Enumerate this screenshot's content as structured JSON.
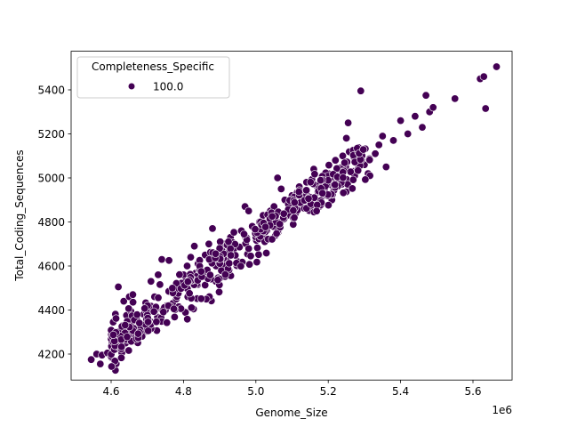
{
  "chart_data": {
    "type": "scatter",
    "title": "",
    "xlabel": "Genome_Size",
    "ylabel": "Total_Coding_Sequences",
    "x_offset_label": "1e6",
    "xlim": [
      4.49,
      5.72
    ],
    "ylim": [
      4088,
      5537
    ],
    "x_ticks": [
      4.6,
      4.8,
      5.0,
      5.2,
      5.4,
      5.6
    ],
    "x_tick_labels": [
      "4.6",
      "4.8",
      "5.0",
      "5.2",
      "5.4",
      "5.6"
    ],
    "y_ticks": [
      4200,
      4400,
      4600,
      4800,
      5000,
      5200,
      5400
    ],
    "y_tick_labels": [
      "4200",
      "4400",
      "4600",
      "4800",
      "5000",
      "5200",
      "5400"
    ],
    "grid": false,
    "legend": {
      "title": "Completeness_Specific",
      "position": "upper left",
      "entries": [
        {
          "label": "100.0",
          "color": "#440154"
        }
      ]
    },
    "marker_color": "#440154",
    "marker_edge": "#ffffff",
    "trend": {
      "slope_cds_per_mb": 1230,
      "intercept_at_4_6": 4230
    },
    "series": [
      {
        "name": "100.0",
        "points": [
          [
            4.545,
            4175
          ],
          [
            4.56,
            4200
          ],
          [
            4.57,
            4155
          ],
          [
            4.575,
            4195
          ],
          [
            4.59,
            4205
          ],
          [
            4.6,
            4185
          ],
          [
            4.61,
            4240
          ],
          [
            4.62,
            4225
          ],
          [
            4.63,
            4230
          ],
          [
            4.64,
            4250
          ],
          [
            4.645,
            4265
          ],
          [
            4.655,
            4280
          ],
          [
            4.62,
            4505
          ],
          [
            4.635,
            4440
          ],
          [
            4.65,
            4460
          ],
          [
            4.66,
            4470
          ],
          [
            4.67,
            4360
          ],
          [
            4.68,
            4340
          ],
          [
            4.69,
            4380
          ],
          [
            4.7,
            4420
          ],
          [
            4.71,
            4530
          ],
          [
            4.72,
            4460
          ],
          [
            4.73,
            4560
          ],
          [
            4.74,
            4630
          ],
          [
            4.76,
            4625
          ],
          [
            4.75,
            4400
          ],
          [
            4.77,
            4430
          ],
          [
            4.78,
            4450
          ],
          [
            4.79,
            4500
          ],
          [
            4.8,
            4560
          ],
          [
            4.81,
            4600
          ],
          [
            4.82,
            4640
          ],
          [
            4.83,
            4690
          ],
          [
            4.84,
            4610
          ],
          [
            4.85,
            4560
          ],
          [
            4.86,
            4650
          ],
          [
            4.87,
            4700
          ],
          [
            4.88,
            4770
          ],
          [
            4.89,
            4600
          ],
          [
            4.9,
            4660
          ],
          [
            4.91,
            4700
          ],
          [
            4.92,
            4640
          ],
          [
            4.93,
            4730
          ],
          [
            4.94,
            4680
          ],
          [
            4.95,
            4620
          ],
          [
            4.96,
            4760
          ],
          [
            4.97,
            4870
          ],
          [
            4.98,
            4850
          ],
          [
            4.99,
            4780
          ],
          [
            5.0,
            4720
          ],
          [
            5.01,
            4800
          ],
          [
            5.02,
            4830
          ],
          [
            5.03,
            4760
          ],
          [
            5.04,
            4850
          ],
          [
            5.05,
            4870
          ],
          [
            5.06,
            5000
          ],
          [
            5.07,
            4950
          ],
          [
            5.08,
            4900
          ],
          [
            5.09,
            4880
          ],
          [
            5.1,
            4920
          ],
          [
            5.11,
            4840
          ],
          [
            5.12,
            4960
          ],
          [
            5.13,
            4930
          ],
          [
            5.14,
            4980
          ],
          [
            5.15,
            4900
          ],
          [
            5.16,
            5040
          ],
          [
            5.17,
            4960
          ],
          [
            5.18,
            4990
          ],
          [
            5.19,
            4950
          ],
          [
            5.2,
            5020
          ],
          [
            5.21,
            4900
          ],
          [
            5.22,
            5080
          ],
          [
            5.23,
            5040
          ],
          [
            5.24,
            5100
          ],
          [
            5.25,
            5180
          ],
          [
            5.255,
            5250
          ],
          [
            5.27,
            5030
          ],
          [
            5.29,
            5395
          ],
          [
            5.3,
            5060
          ],
          [
            5.31,
            5020
          ],
          [
            5.33,
            5110
          ],
          [
            5.34,
            5150
          ],
          [
            5.35,
            5190
          ],
          [
            5.36,
            5050
          ],
          [
            5.38,
            5170
          ],
          [
            5.4,
            5260
          ],
          [
            5.42,
            5200
          ],
          [
            5.44,
            5280
          ],
          [
            5.46,
            5230
          ],
          [
            5.47,
            5375
          ],
          [
            5.48,
            5300
          ],
          [
            5.49,
            5320
          ],
          [
            5.55,
            5360
          ],
          [
            5.62,
            5450
          ],
          [
            5.63,
            5460
          ],
          [
            5.635,
            5315
          ],
          [
            5.665,
            5505
          ]
        ]
      }
    ]
  }
}
